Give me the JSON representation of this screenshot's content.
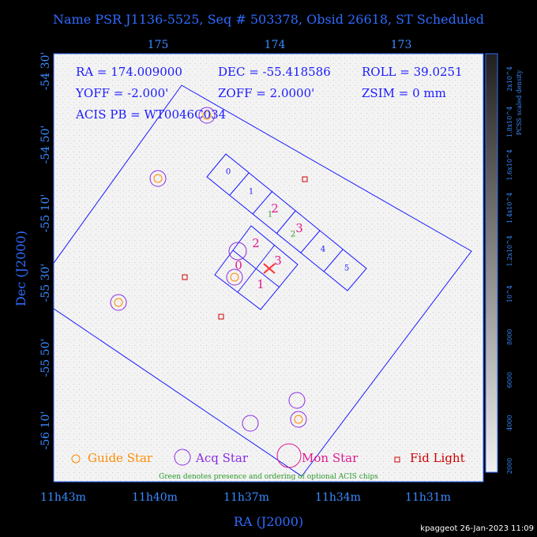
{
  "header": {
    "title": "Name PSR J1136-5525, Seq # 503378, Obsid 26618, ST Scheduled"
  },
  "axes": {
    "top_ticks": [
      "175",
      "174",
      "173"
    ],
    "bottom_ticks": [
      "11h43m",
      "11h40m",
      "11h37m",
      "11h34m",
      "11h31m"
    ],
    "left_ticks": [
      "-54 30'",
      "-54 50'",
      "-55 10'",
      "-55 30'",
      "-55 50'",
      "-56 10'"
    ],
    "x_label": "RA (J2000)",
    "y_label": "Dec (J2000)"
  },
  "info": {
    "ra": "RA = 174.009000",
    "dec": "DEC = -55.418586",
    "roll": "ROLL = 39.0251",
    "yoff": "YOFF = -2.000'",
    "zoff": "ZOFF = 2.0000'",
    "zsim": "ZSIM = 0 mm",
    "acis_pb": "ACIS PB = WT0046C034"
  },
  "chips": {
    "s_labels": [
      "0",
      "1",
      "2",
      "3",
      "4",
      "5"
    ],
    "i_labels": [
      "0",
      "1",
      "2",
      "3"
    ],
    "optional": [
      "1",
      "2"
    ]
  },
  "legend": [
    "Guide Star",
    "Acq Star",
    "Mon Star",
    "Fid Light"
  ],
  "legend_note": "Green denotes presence and ordering of optional ACIS chips",
  "colorbar": {
    "title": "PCSS scaled density",
    "labels": [
      "2x10^4",
      "1.8x10^4",
      "1.6x10^4",
      "1.4x10^4",
      "1.2x10^4",
      "10^4",
      "8000",
      "6000",
      "4000",
      "2000"
    ]
  },
  "footer": "kpaggeot 26-Jan-2023 11:09"
}
